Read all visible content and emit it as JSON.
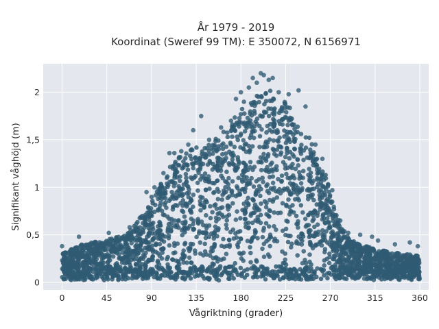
{
  "chart_data": {
    "type": "scatter",
    "title_lines": [
      "År 1979 - 2019",
      "Koordinat (Sweref 99 TM): E 350072, N 6156971"
    ],
    "xlabel": "Vågriktning (grader)",
    "ylabel": "Signifikant våghöjd (m)",
    "xlim": [
      -19,
      369
    ],
    "ylim": [
      -0.08,
      2.3
    ],
    "xticks": [
      0,
      45,
      90,
      135,
      180,
      225,
      270,
      315,
      360
    ],
    "yticks": [
      0,
      0.5,
      1,
      1.5,
      2
    ],
    "ytick_labels": [
      "0",
      "0,5",
      "1",
      "1,5",
      "2"
    ],
    "grid": true,
    "background": "#e5e7ee",
    "marker_color": "#2f5a73",
    "envelope": {
      "x": [
        0,
        20,
        45,
        65,
        80,
        90,
        100,
        110,
        120,
        135,
        150,
        165,
        180,
        195,
        205,
        215,
        225,
        235,
        245,
        255,
        265,
        272,
        280,
        290,
        300,
        315,
        330,
        345,
        360
      ],
      "y_max": [
        0.3,
        0.4,
        0.45,
        0.5,
        0.7,
        0.9,
        1.05,
        1.25,
        1.35,
        1.42,
        1.5,
        1.6,
        1.85,
        1.95,
        2.05,
        1.98,
        1.9,
        1.75,
        1.6,
        1.4,
        1.15,
        0.85,
        0.6,
        0.45,
        0.4,
        0.35,
        0.32,
        0.3,
        0.28
      ]
    },
    "outliers": [
      {
        "x": 0,
        "y": 0.38
      },
      {
        "x": 17,
        "y": 0.48
      },
      {
        "x": 30,
        "y": 0.4
      },
      {
        "x": 47,
        "y": 0.52
      },
      {
        "x": 55,
        "y": 0.43
      },
      {
        "x": 68,
        "y": 0.58
      },
      {
        "x": 75,
        "y": 0.55
      },
      {
        "x": 85,
        "y": 0.95
      },
      {
        "x": 93,
        "y": 1.0
      },
      {
        "x": 97,
        "y": 0.98
      },
      {
        "x": 102,
        "y": 1.15
      },
      {
        "x": 108,
        "y": 1.36
      },
      {
        "x": 113,
        "y": 1.36
      },
      {
        "x": 120,
        "y": 1.38
      },
      {
        "x": 127,
        "y": 1.45
      },
      {
        "x": 132,
        "y": 1.6
      },
      {
        "x": 140,
        "y": 1.75
      },
      {
        "x": 148,
        "y": 1.5
      },
      {
        "x": 160,
        "y": 1.63
      },
      {
        "x": 170,
        "y": 1.7
      },
      {
        "x": 175,
        "y": 1.93
      },
      {
        "x": 180,
        "y": 2.0
      },
      {
        "x": 183,
        "y": 1.9
      },
      {
        "x": 188,
        "y": 2.05
      },
      {
        "x": 192,
        "y": 2.15
      },
      {
        "x": 196,
        "y": 2.1
      },
      {
        "x": 200,
        "y": 2.2
      },
      {
        "x": 203,
        "y": 2.18
      },
      {
        "x": 208,
        "y": 2.13
      },
      {
        "x": 212,
        "y": 2.15
      },
      {
        "x": 218,
        "y": 2.0
      },
      {
        "x": 228,
        "y": 1.98
      },
      {
        "x": 238,
        "y": 2.02
      },
      {
        "x": 245,
        "y": 1.85
      },
      {
        "x": 255,
        "y": 1.45
      },
      {
        "x": 262,
        "y": 1.3
      },
      {
        "x": 272,
        "y": 0.97
      },
      {
        "x": 280,
        "y": 0.65
      },
      {
        "x": 288,
        "y": 0.52
      },
      {
        "x": 300,
        "y": 0.5
      },
      {
        "x": 312,
        "y": 0.48
      },
      {
        "x": 318,
        "y": 0.44
      },
      {
        "x": 335,
        "y": 0.4
      },
      {
        "x": 350,
        "y": 0.42
      },
      {
        "x": 358,
        "y": 0.38
      }
    ]
  }
}
